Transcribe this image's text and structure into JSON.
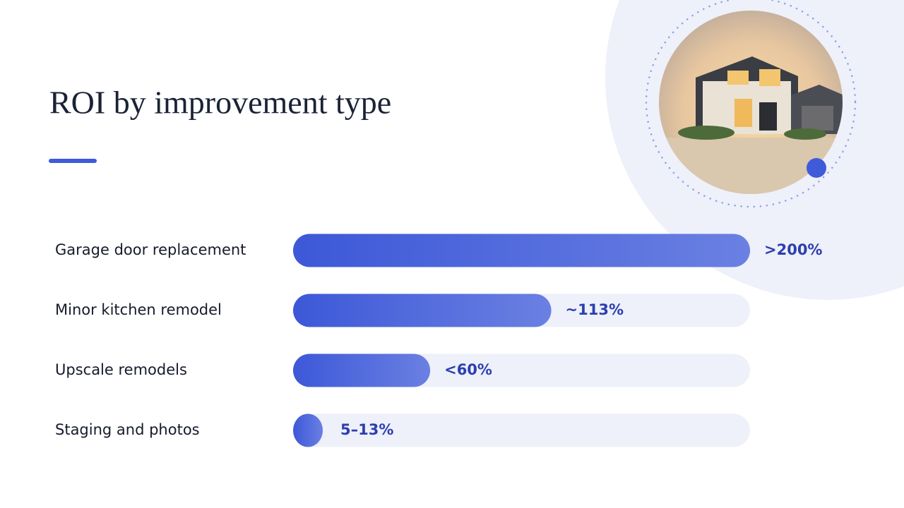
{
  "chart_data": {
    "type": "bar",
    "orientation": "horizontal",
    "title": "ROI by improvement type",
    "categories": [
      "Garage door replacement",
      "Minor kitchen remodel",
      "Upscale remodels",
      "Staging and photos"
    ],
    "values": [
      200,
      113,
      60,
      13
    ],
    "value_labels": [
      ">200%",
      "~113%",
      "<60%",
      "5–13%"
    ],
    "xlim": [
      0,
      200
    ],
    "color": "#3f5bd9",
    "track_color": "#eef0fa"
  }
}
